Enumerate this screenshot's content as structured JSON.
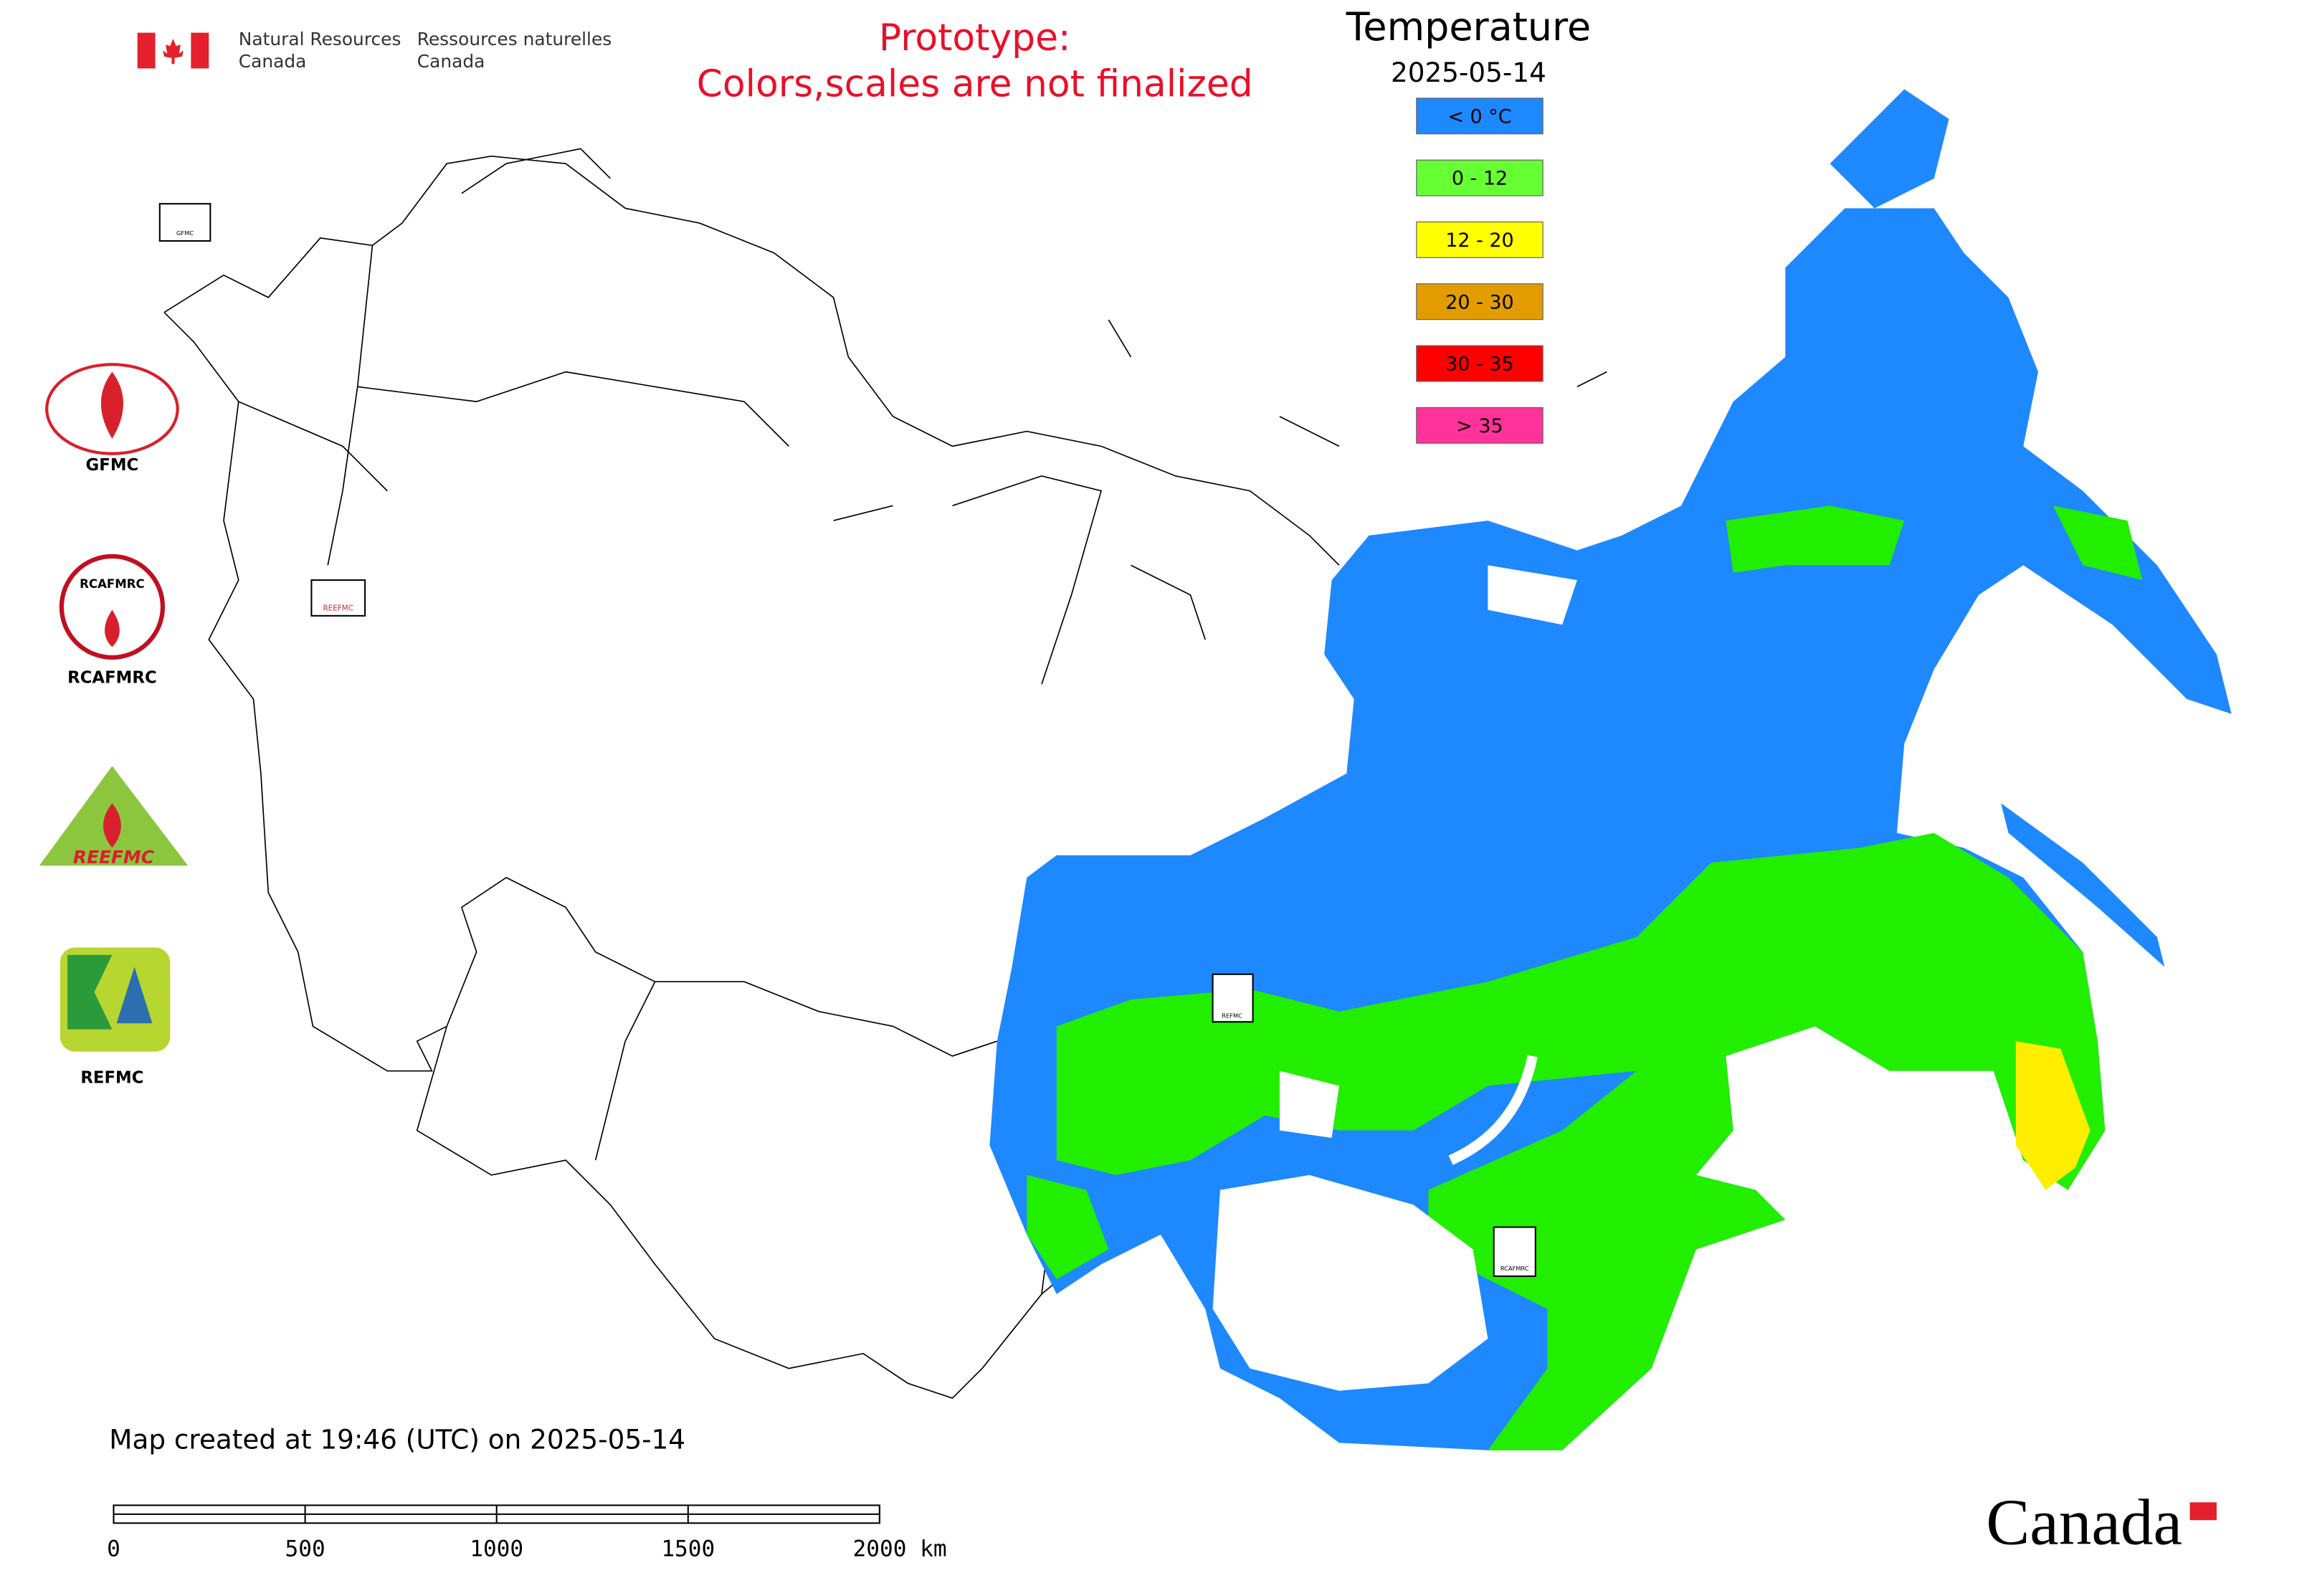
{
  "header": {
    "agency_en": [
      "Natural Resources",
      "Canada"
    ],
    "agency_fr": [
      "Ressources naturelles",
      "Canada"
    ]
  },
  "notice": [
    "Prototype:",
    "Colors,scales are not finalized"
  ],
  "legend": {
    "title": "Temperature",
    "date": "2025-05-14",
    "items": [
      {
        "label": "< 0 °C",
        "color": "#1e88ff"
      },
      {
        "label": "0 - 12",
        "color": "#66ff33"
      },
      {
        "label": "12 - 20",
        "color": "#ffff00"
      },
      {
        "label": "20 - 30",
        "color": "#e39c00"
      },
      {
        "label": "30 - 35",
        "color": "#ff0000"
      },
      {
        "label": "> 35",
        "color": "#ff3399"
      }
    ]
  },
  "logos": [
    {
      "label": "GFMC"
    },
    {
      "label": "RCAFMRC",
      "text": "RCAFMRC"
    },
    {
      "text": "REEFMC"
    },
    {
      "label": "REFMC"
    }
  ],
  "map_markers": [
    "GFMC",
    "REEFMC",
    "REFMC",
    "RCAFMRC"
  ],
  "footer": "Map created at 19:46 (UTC) on 2025-05-14",
  "scale_bar": {
    "ticks": [
      0,
      500,
      1000,
      1500,
      {
        "value": 2000,
        "label": "2000 km"
      }
    ]
  },
  "wordmark": "Canada"
}
